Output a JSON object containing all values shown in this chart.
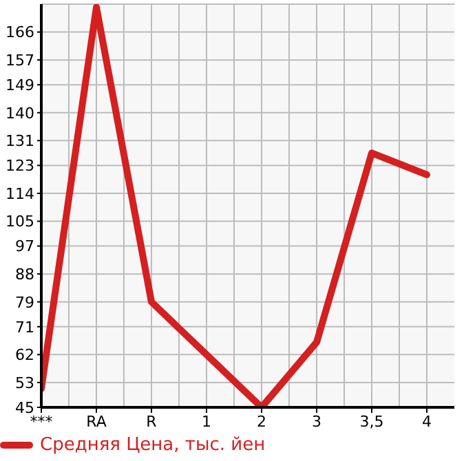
{
  "chart_data": {
    "type": "line",
    "categories": [
      "***",
      "RA",
      "R",
      "1",
      "2",
      "3",
      "3,5",
      "4"
    ],
    "series": [
      {
        "name": "Средняя Цена, тыс. йен",
        "color": "#d42020",
        "values": [
          51,
          174,
          79,
          62,
          45,
          66,
          127,
          120
        ]
      }
    ],
    "ylim": [
      45,
      175
    ],
    "yticks": [
      45,
      53,
      62,
      71,
      79,
      88,
      97,
      105,
      114,
      123,
      131,
      140,
      149,
      157,
      166
    ],
    "grid": true,
    "legend": "bottom",
    "marker": "none",
    "line_style": "solid"
  }
}
